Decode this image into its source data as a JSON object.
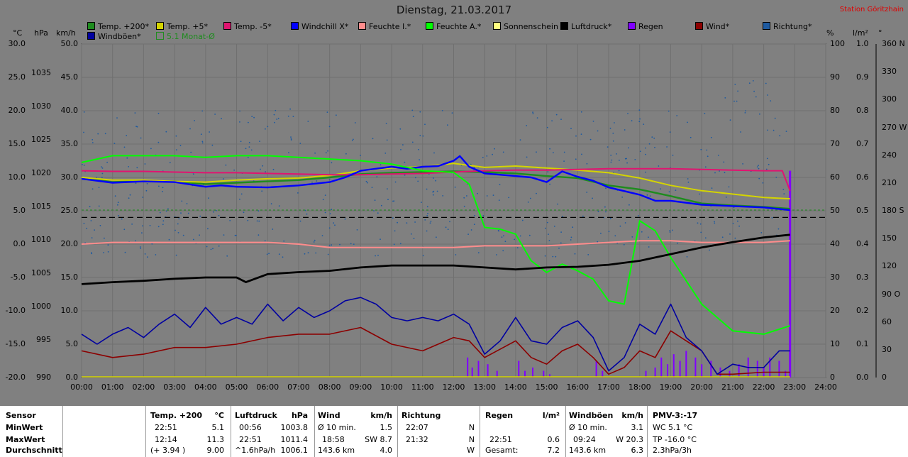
{
  "title": "Dienstag, 21.03.2017",
  "station": "Station Göritzhain",
  "units": {
    "degC": "°C",
    "hpa": "hPa",
    "kmh": "km/h",
    "pct": "%",
    "lm2": "l/m²",
    "deg": "°"
  },
  "legend_row1": [
    {
      "label": "Temp. +200*",
      "color": "#1e8c1e"
    },
    {
      "label": "Temp. +5*",
      "color": "#d4d400"
    },
    {
      "label": "Temp. -5*",
      "color": "#e01470"
    },
    {
      "label": "Windchill X*",
      "color": "#0000ff"
    },
    {
      "label": "Feuchte I.*",
      "color": "#ff8c8c"
    },
    {
      "label": "Feuchte A.*",
      "color": "#00ff00"
    },
    {
      "label": "Sonnenschein",
      "color": "#ffff80"
    },
    {
      "label": "Luftdruck*",
      "color": "#000000"
    },
    {
      "label": "Regen",
      "color": "#8000ff"
    },
    {
      "label": "Wind*",
      "color": "#8b0000"
    },
    {
      "label": "Richtung*",
      "color": "#1e5aa0"
    }
  ],
  "legend_row2": [
    {
      "label": "Windböen*",
      "color": "#0000a0"
    },
    {
      "label": "5.1 Monat-Ø",
      "color": "#1e8c1e"
    }
  ],
  "chart_data": {
    "type": "line",
    "x_ticks": [
      "00:00",
      "01:00",
      "02:00",
      "03:00",
      "04:00",
      "05:00",
      "06:00",
      "07:00",
      "08:00",
      "09:00",
      "10:00",
      "11:00",
      "12:00",
      "13:00",
      "14:00",
      "15:00",
      "16:00",
      "17:00",
      "18:00",
      "19:00",
      "20:00",
      "21:00",
      "22:00",
      "23:00",
      "24:00"
    ],
    "axes": {
      "temp_c": {
        "range": [
          -20,
          30
        ],
        "ticks": [
          "30.0",
          "25.0",
          "20.0",
          "15.0",
          "10.0",
          "5.0",
          "0.0",
          "-5.0",
          "-10.0",
          "-15.0",
          "-20.0"
        ]
      },
      "pressure_hpa": {
        "range": [
          990,
          1040
        ],
        "ticks": [
          "1035",
          "1030",
          "1025",
          "1020",
          "1015",
          "1010",
          "1005",
          "1000",
          "995",
          "990"
        ]
      },
      "wind_kmh": {
        "range": [
          0,
          50
        ],
        "ticks": [
          "50.0",
          "45.0",
          "40.0",
          "35.0",
          "30.0",
          "25.0",
          "20.0",
          "15.0",
          "10.0",
          "5.0",
          "0.0"
        ]
      },
      "humidity_pct": {
        "range": [
          0,
          100
        ],
        "ticks": [
          "100",
          "90",
          "80",
          "70",
          "60",
          "50",
          "40",
          "30",
          "20",
          "10",
          "0"
        ]
      },
      "rain_lm2": {
        "range": [
          0,
          1
        ],
        "ticks": [
          "1.0",
          "0.9",
          "0.8",
          "0.7",
          "0.6",
          "0.5",
          "0.4",
          "0.3",
          "0.2",
          "0.1",
          "0.0"
        ]
      },
      "direction_deg": {
        "range": [
          0,
          360
        ],
        "ticks": [
          "360 N",
          "330",
          "300",
          "270 W",
          "240",
          "210",
          "180 S",
          "150",
          "120",
          "90 O",
          "60",
          "30",
          "0"
        ]
      }
    },
    "series": [
      {
        "name": "Temp. +200*",
        "axis": "temp_c",
        "x": [
          0,
          1,
          2,
          3,
          4,
          5,
          6,
          7,
          8,
          9,
          10,
          11,
          12,
          13,
          14,
          15,
          16,
          17,
          18,
          19,
          20,
          21,
          22,
          22.85
        ],
        "y": [
          9.9,
          9.3,
          9.5,
          9.4,
          9.0,
          9.2,
          9.4,
          9.6,
          10.0,
          10.5,
          10.7,
          10.8,
          10.9,
          10.8,
          10.6,
          10.2,
          9.9,
          8.8,
          8.2,
          7.2,
          6.1,
          5.8,
          5.6,
          5.3
        ]
      },
      {
        "name": "Temp. +5*",
        "axis": "temp_c",
        "x": [
          0,
          1,
          2,
          3,
          4,
          5,
          6,
          7,
          8,
          9,
          10,
          11,
          12,
          13,
          14,
          15,
          16,
          17,
          18,
          19,
          20,
          21,
          22,
          22.85
        ],
        "y": [
          10.0,
          9.6,
          9.6,
          9.4,
          9.3,
          9.6,
          9.8,
          9.9,
          10.3,
          11.0,
          11.4,
          11.6,
          12.1,
          11.5,
          11.7,
          11.4,
          11.1,
          10.7,
          9.9,
          8.8,
          8.0,
          7.5,
          7.0,
          6.8
        ]
      },
      {
        "name": "Temp. -5*",
        "axis": "temp_c",
        "x": [
          0,
          1,
          2,
          3,
          4,
          5,
          6,
          7,
          8,
          9,
          10,
          11,
          12,
          13,
          14,
          15,
          16,
          17,
          18,
          19,
          20,
          21,
          22,
          22.6,
          22.85
        ],
        "y": [
          11.0,
          10.9,
          10.9,
          10.8,
          10.7,
          10.7,
          10.6,
          10.5,
          10.4,
          10.4,
          10.5,
          10.6,
          10.8,
          11.0,
          11.1,
          11.1,
          11.2,
          11.3,
          11.3,
          11.3,
          11.2,
          11.1,
          11.0,
          11.0,
          8.0
        ]
      },
      {
        "name": "Windchill X*",
        "axis": "temp_c",
        "x": [
          0,
          1,
          2,
          3,
          4,
          4.5,
          5,
          6,
          7,
          8,
          8.5,
          9,
          10,
          10.5,
          11,
          11.5,
          12,
          12.2,
          12.5,
          13,
          14,
          14.5,
          15,
          15.5,
          16,
          16.5,
          17,
          18,
          18.5,
          19,
          20,
          21,
          22,
          22.85
        ],
        "y": [
          9.8,
          9.2,
          9.4,
          9.3,
          8.6,
          8.8,
          8.6,
          8.5,
          8.8,
          9.3,
          10.0,
          11.0,
          11.6,
          11.3,
          11.6,
          11.7,
          12.5,
          13.2,
          11.6,
          10.6,
          10.2,
          10.0,
          9.3,
          10.9,
          10.1,
          9.5,
          8.5,
          7.4,
          6.5,
          6.5,
          5.9,
          5.7,
          5.5,
          5.1
        ]
      },
      {
        "name": "Feuchte I.*",
        "axis": "humidity_pct",
        "x": [
          0,
          1,
          2,
          3,
          4,
          5,
          6,
          7,
          8,
          9,
          10,
          11,
          12,
          13,
          14,
          15,
          16,
          17,
          18,
          19,
          20,
          21,
          22,
          22.85
        ],
        "y": [
          40,
          40.5,
          40.5,
          40.5,
          40.5,
          40.5,
          40.5,
          40,
          39,
          39,
          39,
          39,
          39,
          39.5,
          39.5,
          39.5,
          40,
          40.5,
          41,
          41,
          40.5,
          40.5,
          40.5,
          41
        ]
      },
      {
        "name": "Feuchte A.*",
        "axis": "humidity_pct",
        "x": [
          0,
          1,
          2,
          3,
          4,
          5,
          6,
          7,
          8,
          9,
          10,
          11,
          12,
          12.5,
          13,
          13.5,
          14,
          14.5,
          15,
          15.5,
          16,
          16.5,
          17,
          17.5,
          18,
          18.5,
          19,
          20,
          21,
          22,
          22.85
        ],
        "y": [
          64.5,
          66.5,
          66.5,
          66.5,
          66,
          66.5,
          66.5,
          66,
          65.5,
          65,
          64,
          62,
          61.5,
          58,
          45,
          44.5,
          43,
          35,
          31.5,
          34,
          32,
          29.5,
          23,
          22,
          47,
          44,
          36,
          22,
          14,
          13,
          15.5
        ]
      },
      {
        "name": "Luftdruck*",
        "axis": "pressure_hpa",
        "x": [
          0,
          1,
          2,
          3,
          4,
          5,
          5.3,
          6,
          7,
          8,
          9,
          10,
          11,
          12,
          13,
          14,
          15,
          16,
          17,
          18,
          19,
          20,
          21,
          22,
          22.85
        ],
        "y": [
          1004.0,
          1004.3,
          1004.5,
          1004.8,
          1005.0,
          1005.0,
          1004.3,
          1005.5,
          1005.8,
          1006.0,
          1006.5,
          1006.8,
          1006.8,
          1006.8,
          1006.5,
          1006.2,
          1006.5,
          1006.6,
          1006.9,
          1007.5,
          1008.5,
          1009.5,
          1010.3,
          1011.0,
          1011.4
        ]
      },
      {
        "name": "Wind*",
        "axis": "wind_kmh",
        "x": [
          0,
          1,
          2,
          3,
          4,
          5,
          6,
          7,
          8,
          9,
          10,
          11,
          12,
          12.5,
          13,
          14,
          14.5,
          15,
          15.5,
          16,
          16.5,
          17,
          17.5,
          18,
          18.5,
          19,
          20,
          20.5,
          21,
          22,
          22.85
        ],
        "y": [
          4.0,
          3.0,
          3.5,
          4.5,
          4.5,
          5.0,
          6.0,
          6.5,
          6.5,
          7.5,
          5.0,
          4.0,
          6.0,
          5.5,
          3.0,
          5.5,
          3.0,
          2.0,
          4.0,
          5.0,
          3.0,
          0.5,
          1.5,
          4.0,
          3.0,
          7.0,
          4.0,
          0.5,
          0.5,
          0.8,
          0.8
        ]
      },
      {
        "name": "Windböen*",
        "axis": "wind_kmh",
        "x": [
          0,
          0.5,
          1,
          1.5,
          2,
          2.5,
          3,
          3.5,
          4,
          4.5,
          5,
          5.5,
          6,
          6.5,
          7,
          7.5,
          8,
          8.5,
          9,
          9.5,
          10,
          10.5,
          11,
          11.5,
          12,
          12.5,
          13,
          13.5,
          14,
          14.5,
          15,
          15.5,
          16,
          16.5,
          17,
          17.5,
          18,
          18.5,
          19,
          19.5,
          20,
          20.5,
          21,
          21.5,
          22,
          22.5,
          22.85
        ],
        "y": [
          6.5,
          5.0,
          6.5,
          7.5,
          6.0,
          8.0,
          9.5,
          7.5,
          10.5,
          8.0,
          9.0,
          8.0,
          11.0,
          8.5,
          10.5,
          9.0,
          10.0,
          11.5,
          12.0,
          11.0,
          9.0,
          8.5,
          9.0,
          8.5,
          9.5,
          8.0,
          3.5,
          5.5,
          9.0,
          5.5,
          5.0,
          7.5,
          8.5,
          6.0,
          1.0,
          3.0,
          8.0,
          6.5,
          11.0,
          6.0,
          4.0,
          0.5,
          2.0,
          1.5,
          1.5,
          4.0,
          4.0
        ]
      }
    ],
    "reference_lines": [
      {
        "name": "5.1 Monat-Ø",
        "axis": "temp_c",
        "y": 5.1,
        "style": "dashed",
        "color": "#1e8c1e"
      },
      {
        "name": "black-dashed",
        "axis": "temp_c",
        "y": 4.0,
        "style": "dashed",
        "color": "#000000"
      }
    ],
    "rain_bars": {
      "axis": "rain_lm2",
      "x": [
        12.45,
        12.6,
        12.8,
        13.1,
        13.4,
        14.1,
        14.3,
        14.55,
        14.9,
        15.1,
        16.6,
        16.8,
        18.2,
        18.5,
        18.7,
        18.9,
        19.1,
        19.3,
        19.5,
        19.8,
        20.0,
        20.3,
        20.6,
        20.9,
        21.2,
        21.5,
        21.8,
        22.0,
        22.2,
        22.5,
        22.7,
        22.85
      ],
      "y": [
        0.06,
        0.03,
        0.05,
        0.04,
        0.02,
        0.05,
        0.02,
        0.03,
        0.02,
        0.01,
        0.05,
        0.02,
        0.02,
        0.03,
        0.06,
        0.04,
        0.07,
        0.05,
        0.08,
        0.06,
        0.04,
        0.05,
        0.03,
        0.02,
        0.04,
        0.06,
        0.05,
        0.03,
        0.06,
        0.05,
        0.02,
        0.62
      ]
    },
    "direction_scatter": {
      "axis": "direction_deg",
      "note": "scattered points"
    }
  },
  "table": {
    "row_labels": [
      "Sensor",
      "MinWert",
      "MaxWert",
      "Durchschnitt"
    ],
    "temp": {
      "head": "Temp. +200",
      "unit": "°C",
      "rows": [
        [
          "22:51",
          "5.1"
        ],
        [
          "12:14",
          "11.3"
        ],
        [
          "(+ 3.94 )",
          "9.00"
        ]
      ]
    },
    "press": {
      "head": "Luftdruck",
      "unit": "hPa",
      "rows": [
        [
          "00:56",
          "1003.8"
        ],
        [
          "22:51",
          "1011.4"
        ],
        [
          "^1.6hPa/h",
          "1006.1"
        ]
      ]
    },
    "wind": {
      "head": "Wind",
      "unit": "km/h",
      "rows": [
        [
          "Ø 10 min.",
          "1.5"
        ],
        [
          "18:58",
          "SW 8.7"
        ],
        [
          "143.6 km",
          "4.0"
        ]
      ]
    },
    "dir": {
      "head": "Richtung",
      "rows": [
        [
          "22:07",
          "N"
        ],
        [
          "21:32",
          "N"
        ],
        [
          "",
          "W"
        ]
      ]
    },
    "rain": {
      "head": "Regen",
      "unit": "l/m²",
      "rows": [
        [
          "",
          ""
        ],
        [
          "22:51",
          "0.6"
        ],
        [
          "Gesamt:",
          "7.2"
        ]
      ]
    },
    "gust": {
      "head": "Windböen",
      "unit": "km/h",
      "rows": [
        [
          "Ø 10 min.",
          "3.1"
        ],
        [
          "09:24",
          "W 20.3"
        ],
        [
          "143.6 km",
          "6.3"
        ]
      ]
    },
    "pmv": {
      "head": "PMV-3:-17",
      "rows": [
        "WC 5.1 °C",
        "TP -16.0 °C",
        "2.3hPa/3h"
      ]
    }
  }
}
